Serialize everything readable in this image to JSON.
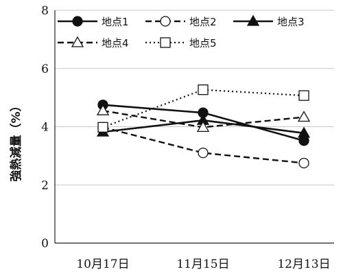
{
  "chart_data": {
    "type": "line",
    "ylabel": "強熱減量（%）",
    "xlabel": "",
    "categories": [
      "10月17日",
      "11月15日",
      "12月13日"
    ],
    "ylim": [
      0,
      8
    ],
    "yticks": [
      0,
      2,
      4,
      6,
      8
    ],
    "grid": true,
    "legend": "top",
    "series": [
      {
        "name": "地点1",
        "values": [
          4.75,
          4.48,
          3.52
        ],
        "marker": "circle-filled",
        "dash": "solid"
      },
      {
        "name": "地点2",
        "values": [
          3.98,
          3.1,
          2.75
        ],
        "marker": "circle-open",
        "dash": "dashed"
      },
      {
        "name": "地点3",
        "values": [
          3.82,
          4.22,
          3.78
        ],
        "marker": "triangle-filled",
        "dash": "solid"
      },
      {
        "name": "地点4",
        "values": [
          4.55,
          3.98,
          4.33
        ],
        "marker": "triangle-open",
        "dash": "dashed"
      },
      {
        "name": "地点5",
        "values": [
          3.98,
          5.27,
          5.07
        ],
        "marker": "square-open",
        "dash": "dotted"
      }
    ]
  }
}
